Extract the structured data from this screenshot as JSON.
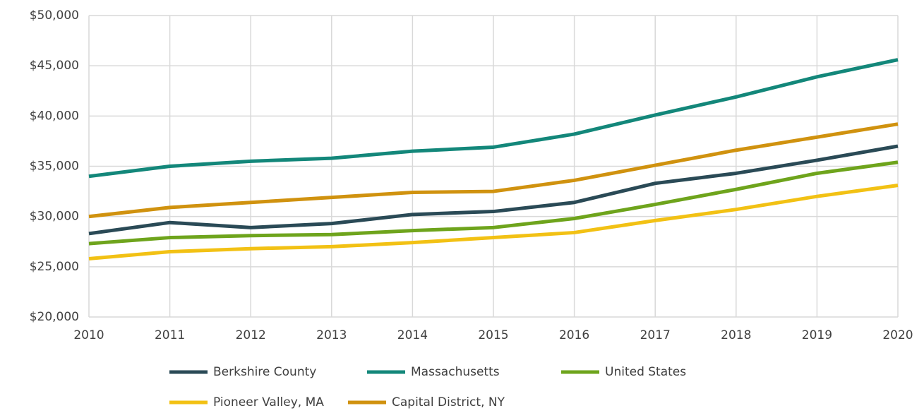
{
  "chart_data": {
    "type": "line",
    "x": [
      2010,
      2011,
      2012,
      2013,
      2014,
      2015,
      2016,
      2017,
      2018,
      2019,
      2020
    ],
    "xlim": [
      2010,
      2020
    ],
    "xticks": [
      2010,
      2011,
      2012,
      2013,
      2014,
      2015,
      2016,
      2017,
      2018,
      2019,
      2020
    ],
    "ylim": [
      20000,
      50000
    ],
    "yticks": [
      {
        "value": 20000,
        "label": "$20,000"
      },
      {
        "value": 25000,
        "label": "$25,000"
      },
      {
        "value": 30000,
        "label": "$30,000"
      },
      {
        "value": 35000,
        "label": "$35,000"
      },
      {
        "value": 40000,
        "label": "$40,000"
      },
      {
        "value": 45000,
        "label": "$45,000"
      },
      {
        "value": 50000,
        "label": "$50,000"
      }
    ],
    "grid": true,
    "legend": "bottom",
    "series": [
      {
        "name": "Berkshire County",
        "color": "#2a4a56",
        "values": [
          28300,
          29400,
          28900,
          29300,
          30200,
          30500,
          31400,
          33300,
          34300,
          35600,
          37000
        ]
      },
      {
        "name": "Massachusetts",
        "color": "#13877a",
        "values": [
          34000,
          35000,
          35500,
          35800,
          36500,
          36900,
          38200,
          40100,
          41900,
          43900,
          45600
        ]
      },
      {
        "name": "United States",
        "color": "#6ea41c",
        "values": [
          27300,
          27900,
          28100,
          28200,
          28600,
          28900,
          29800,
          31200,
          32700,
          34300,
          35400
        ]
      },
      {
        "name": "Pioneer Valley, MA",
        "color": "#f2c114",
        "values": [
          25800,
          26500,
          26800,
          27000,
          27400,
          27900,
          28400,
          29600,
          30700,
          32000,
          33100
        ]
      },
      {
        "name": "Capital District, NY",
        "color": "#d0920f",
        "values": [
          30000,
          30900,
          31400,
          31900,
          32400,
          32500,
          33600,
          35100,
          36600,
          37900,
          39200
        ]
      }
    ]
  }
}
